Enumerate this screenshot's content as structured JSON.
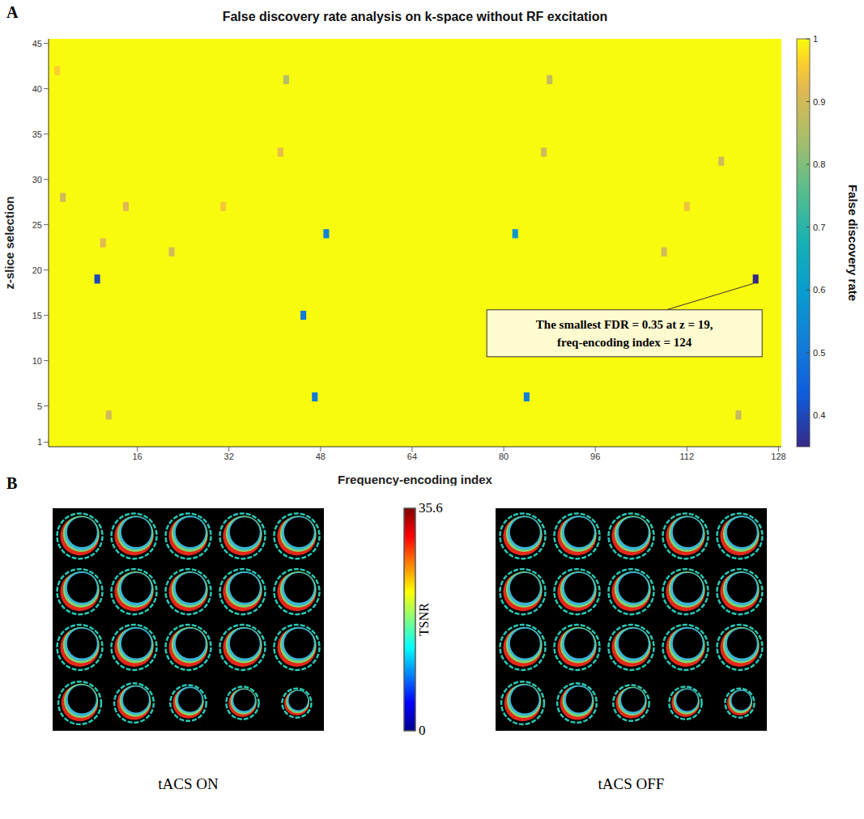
{
  "chart_data": [
    {
      "panel": "A",
      "type": "heatmap",
      "title": "False discovery rate analysis on k-space without RF excitation",
      "x_label": "Frequency-encoding index",
      "y_label": "z-slice selection",
      "xlim": [
        0.5,
        128.5
      ],
      "xticks": [
        16,
        32,
        48,
        64,
        80,
        96,
        112,
        128
      ],
      "ylim": [
        0.5,
        45.5
      ],
      "yticks": [
        1,
        5,
        10,
        15,
        20,
        25,
        30,
        35,
        40,
        45
      ],
      "fill_value": 1,
      "cells": [
        {
          "x": 9,
          "y": 19,
          "value": 0.4
        },
        {
          "x": 124,
          "y": 19,
          "value": 0.35
        },
        {
          "x": 49,
          "y": 24,
          "value": 0.52
        },
        {
          "x": 82,
          "y": 24,
          "value": 0.58
        },
        {
          "x": 45,
          "y": 15,
          "value": 0.5
        },
        {
          "x": 47,
          "y": 6,
          "value": 0.5
        },
        {
          "x": 84,
          "y": 6,
          "value": 0.52
        },
        {
          "x": 42,
          "y": 41,
          "value": 0.86
        },
        {
          "x": 88,
          "y": 41,
          "value": 0.88
        },
        {
          "x": 3,
          "y": 28,
          "value": 0.9
        },
        {
          "x": 14,
          "y": 27,
          "value": 0.92
        },
        {
          "x": 22,
          "y": 22,
          "value": 0.9
        },
        {
          "x": 10,
          "y": 23,
          "value": 0.92
        },
        {
          "x": 118,
          "y": 32,
          "value": 0.9
        },
        {
          "x": 108,
          "y": 22,
          "value": 0.9
        },
        {
          "x": 121,
          "y": 4,
          "value": 0.88
        },
        {
          "x": 11,
          "y": 4,
          "value": 0.9
        },
        {
          "x": 87,
          "y": 33,
          "value": 0.9
        },
        {
          "x": 41,
          "y": 33,
          "value": 0.93
        },
        {
          "x": 112,
          "y": 27,
          "value": 0.94
        },
        {
          "x": 31,
          "y": 27,
          "value": 0.95
        },
        {
          "x": 2,
          "y": 42,
          "value": 0.96
        }
      ],
      "colorbar": {
        "label": "False discovery rate",
        "range": [
          0.35,
          1
        ],
        "ticks": [
          0.4,
          0.5,
          0.6,
          0.7,
          0.8,
          0.9,
          1
        ]
      },
      "annotation": {
        "text": [
          "The smallest FDR = 0.35 at z = 19,",
          "freq-encoding index = 124"
        ],
        "x": 124,
        "y": 19
      }
    },
    {
      "panel": "B",
      "type": "image",
      "slices": 20,
      "images": [
        "tACS ON",
        "tACS OFF"
      ],
      "colorbar": {
        "label": "TSNR",
        "range": [
          0,
          35.6
        ],
        "ticks": [
          0,
          35.6
        ]
      }
    }
  ]
}
